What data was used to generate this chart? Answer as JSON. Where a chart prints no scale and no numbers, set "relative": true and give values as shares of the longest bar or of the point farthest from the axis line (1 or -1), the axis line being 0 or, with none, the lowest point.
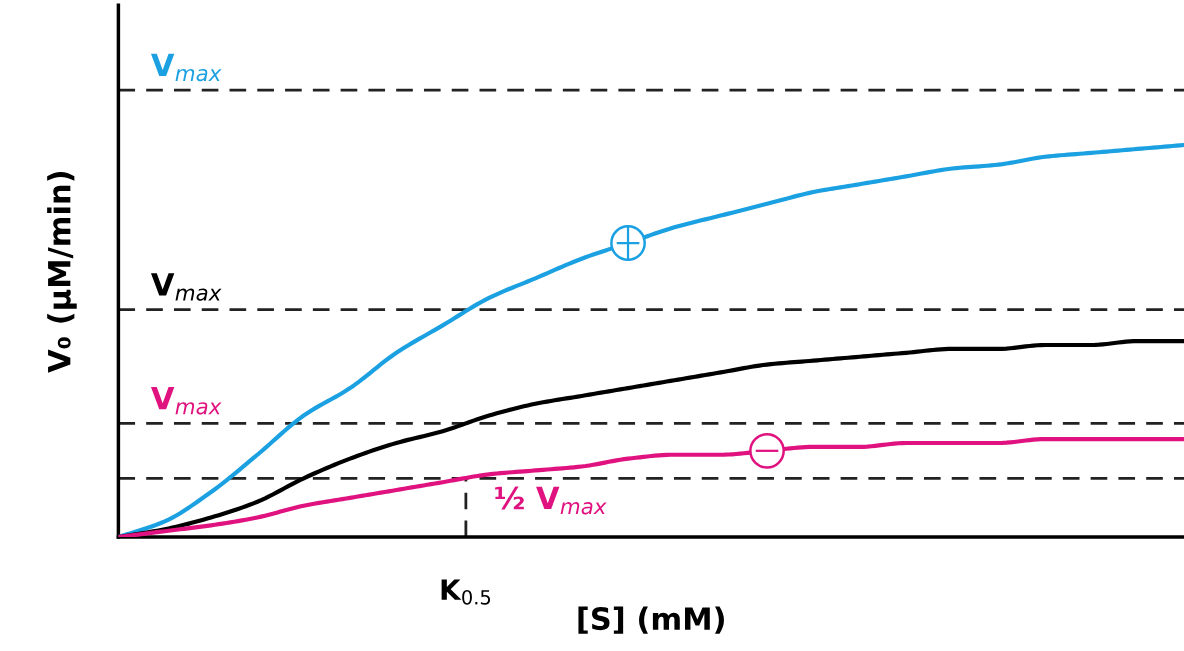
{
  "chart_data": {
    "type": "line",
    "relative": true,
    "xlabel": "[S] (mM)",
    "ylabel": "V₀ (μM/min)",
    "categories": [
      null,
      null,
      null,
      null,
      null,
      null,
      null,
      null,
      null,
      null,
      null,
      null,
      null,
      null,
      null,
      null,
      null,
      null,
      null,
      null,
      null,
      null,
      null,
      null
    ],
    "series": [
      {
        "color": "#1ba1e2",
        "values": [
          0,
          0.04,
          0.115,
          0.21,
          0.31,
          0.38,
          0.47,
          0.54,
          0.61,
          0.66,
          0.71,
          0.75,
          0.79,
          0.82,
          0.85,
          0.88,
          0.9,
          0.92,
          0.94,
          0.95,
          0.97,
          0.98,
          0.99,
          1
        ]
      },
      {
        "color": "#000000",
        "values": [
          0,
          0.02,
          0.05,
          0.09,
          0.15,
          0.2,
          0.24,
          0.27,
          0.31,
          0.34,
          0.36,
          0.38,
          0.4,
          0.42,
          0.44,
          0.45,
          0.46,
          0.47,
          0.48,
          0.48,
          0.49,
          0.49,
          0.5,
          0.5
        ]
      },
      {
        "color": "#e0127f",
        "values": [
          0,
          0.015,
          0.03,
          0.05,
          0.08,
          0.1,
          0.12,
          0.14,
          0.16,
          0.17,
          0.18,
          0.2,
          0.21,
          0.21,
          0.22,
          0.23,
          0.23,
          0.24,
          0.24,
          0.24,
          0.25,
          0.25,
          0.25,
          0.25
        ]
      }
    ],
    "ref_lines": [
      {
        "axis": "y",
        "value": 1.14,
        "label": "V$_{max}$",
        "color": "#222222",
        "line_style": "dashed"
      },
      {
        "axis": "y",
        "value": 0.58,
        "label": "V$_{max}$",
        "color": "#222222",
        "line_style": "dashed"
      },
      {
        "axis": "y",
        "value": 0.29,
        "label": "V$_{max}$",
        "color": "#222222",
        "line_style": "dashed"
      },
      {
        "axis": "y",
        "value": 0.15,
        "label": "½ V$_{max}$",
        "color": "#222222",
        "line_style": "dashed"
      }
    ],
    "annotations": [
      "K$_{0.5}$"
    ],
    "legend": false,
    "marker": "none",
    "line_style": "solid"
  }
}
